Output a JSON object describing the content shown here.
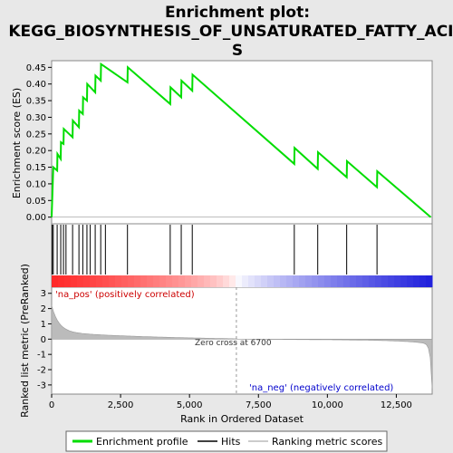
{
  "chart_data": {
    "type": "line",
    "title": "Enrichment plot: KEGG_BIOSYNTHESIS_OF_UNSATURATED_FATTY_ACIDS",
    "title_lines": [
      "Enrichment plot:",
      "KEGG_BIOSYNTHESIS_OF_UNSATURATED_FATTY_ACID",
      "S"
    ],
    "es_panel": {
      "ylabel": "Enrichment score (ES)",
      "ylim": [
        -0.02,
        0.47
      ],
      "yticks": [
        "0.00",
        "0.05",
        "0.10",
        "0.15",
        "0.20",
        "0.25",
        "0.30",
        "0.35",
        "0.40",
        "0.45"
      ],
      "ytick_values": [
        0,
        0.05,
        0.1,
        0.15,
        0.2,
        0.25,
        0.3,
        0.35,
        0.4,
        0.45
      ],
      "grid": false,
      "color": "#00dd00",
      "points": [
        [
          0,
          0
        ],
        [
          60,
          0.15
        ],
        [
          200,
          0.14
        ],
        [
          210,
          0.19
        ],
        [
          330,
          0.175
        ],
        [
          340,
          0.225
        ],
        [
          430,
          0.22
        ],
        [
          440,
          0.265
        ],
        [
          760,
          0.24
        ],
        [
          770,
          0.29
        ],
        [
          990,
          0.27
        ],
        [
          1000,
          0.32
        ],
        [
          1130,
          0.31
        ],
        [
          1140,
          0.36
        ],
        [
          1280,
          0.35
        ],
        [
          1290,
          0.4
        ],
        [
          1580,
          0.375
        ],
        [
          1590,
          0.425
        ],
        [
          1780,
          0.41
        ],
        [
          1790,
          0.46
        ],
        [
          2750,
          0.405
        ],
        [
          2760,
          0.45
        ],
        [
          4300,
          0.34
        ],
        [
          4310,
          0.39
        ],
        [
          4700,
          0.36
        ],
        [
          4710,
          0.41
        ],
        [
          5100,
          0.38
        ],
        [
          5110,
          0.428
        ],
        [
          8800,
          0.16
        ],
        [
          8810,
          0.208
        ],
        [
          9650,
          0.145
        ],
        [
          9660,
          0.195
        ],
        [
          10700,
          0.12
        ],
        [
          10710,
          0.168
        ],
        [
          11800,
          0.09
        ],
        [
          11810,
          0.138
        ],
        [
          13750,
          0
        ]
      ]
    },
    "hits": [
      20,
      60,
      200,
      330,
      430,
      520,
      760,
      990,
      1130,
      1280,
      1400,
      1580,
      1780,
      1950,
      2750,
      4300,
      4700,
      5100,
      8800,
      9650,
      10700,
      11800
    ],
    "rank_panel": {
      "ylabel": "Ranked list metric (PreRanked)",
      "ylim": [
        -3.6,
        3.4
      ],
      "yticks": [
        "-3",
        "-2",
        "-1",
        "0",
        "1",
        "2",
        "3"
      ],
      "ytick_values": [
        -3,
        -2,
        -1,
        0,
        1,
        2,
        3
      ],
      "pos_label": "'na_pos' (positively correlated)",
      "neg_label": "'na_neg' (negatively correlated)",
      "zero_cross_label": "Zero cross at 6700",
      "zero_cross": 6700
    },
    "xlabel": "Rank in Ordered Dataset",
    "xlim": [
      0,
      13800
    ],
    "xticks": [
      "0",
      "2,500",
      "5,000",
      "7,500",
      "10,000",
      "12,500"
    ],
    "xtick_values": [
      0,
      2500,
      5000,
      7500,
      10000,
      12500
    ],
    "legend": {
      "placement": "bottom",
      "items": [
        {
          "label": "Enrichment profile",
          "color": "#00dd00"
        },
        {
          "label": "Hits",
          "color": "#000000"
        },
        {
          "label": "Ranking metric scores",
          "color": "#bbbbbb"
        }
      ]
    }
  }
}
